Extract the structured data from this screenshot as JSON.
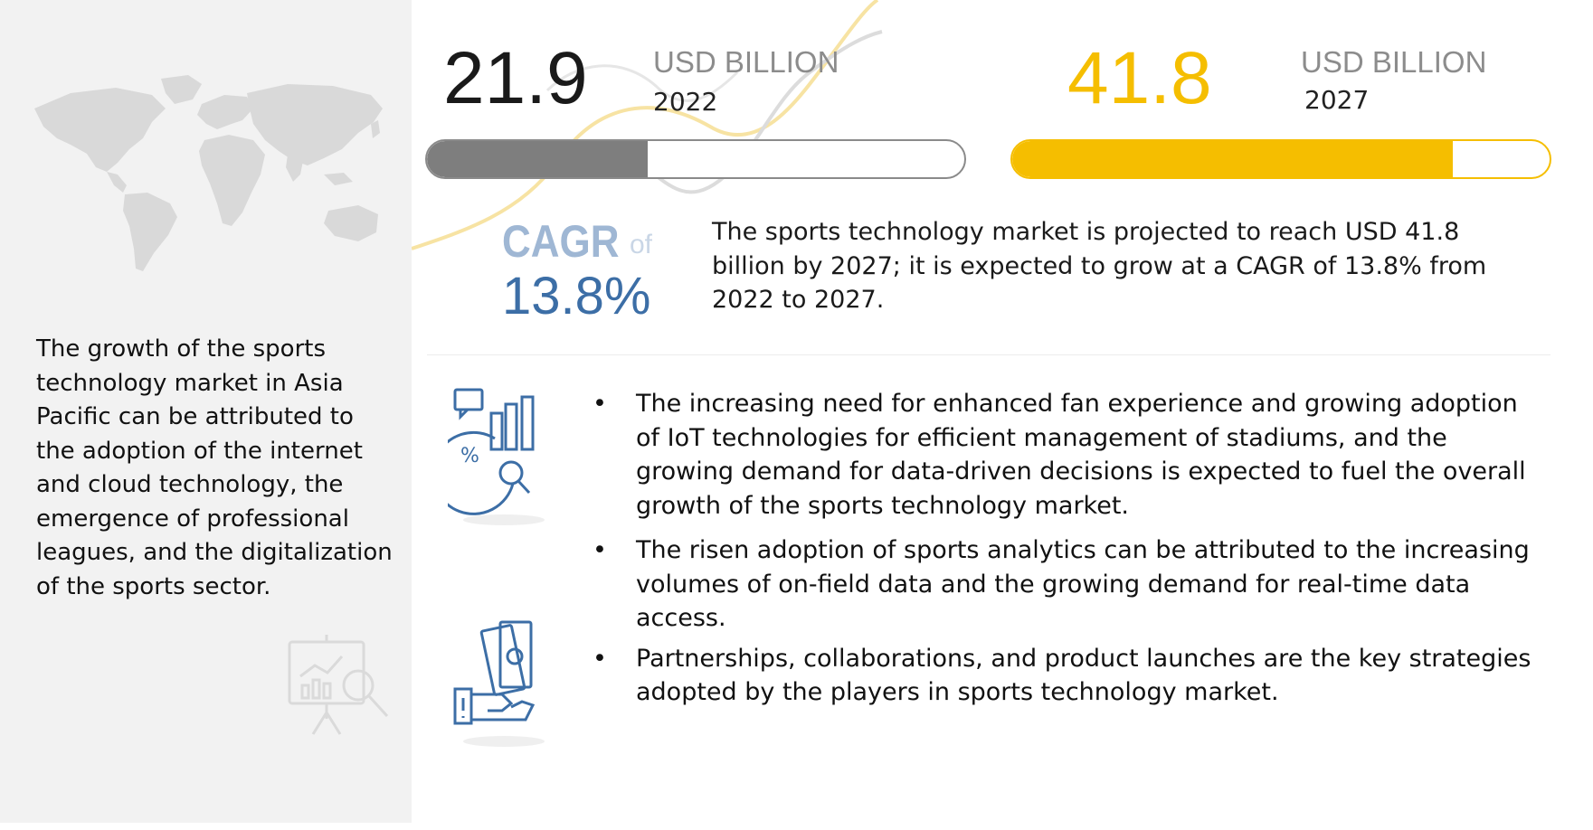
{
  "colors": {
    "accent_yellow": "#f5be00",
    "bar_gray": "#7e7e7e",
    "cagr_blue": "#3c6ea6",
    "sidebar_bg": "#f2f2f2"
  },
  "icons": {
    "map": "world-map-icon",
    "presentation": "presentation-chart-icon",
    "analytics": "analytics-report-icon",
    "money": "money-in-hand-icon"
  },
  "sidebar": {
    "text": "The growth of the sports technology market in Asia Pacific can be attributed to the adoption of the internet and cloud technology, the emergence of professional leagues, and the digitalization of the sports sector."
  },
  "stats": [
    {
      "value": "21.9",
      "unit": "USD BILLION",
      "year": "2022",
      "progress": 0.41
    },
    {
      "value": "41.8",
      "unit": "USD BILLION",
      "year": "2027",
      "progress": 0.82
    }
  ],
  "cagr": {
    "label": "CAGR",
    "of": "of",
    "value": "13.8%"
  },
  "summary": "The sports technology market is projected to reach USD 41.8 billion by 2027; it is expected to grow at a CAGR of 13.8% from 2022 to 2027.",
  "bullets": [
    "The increasing need for enhanced fan experience and growing adoption of IoT technologies for efficient management of stadiums, and the growing demand for data-driven decisions is expected to fuel the overall growth of the sports technology market.",
    "The risen adoption of sports analytics can be attributed to the increasing volumes of on-field data and the growing demand for real-time data access.",
    "Partnerships, collaborations, and product launches are the key strategies adopted by the players in sports technology market."
  ],
  "bullet_symbol": "•"
}
